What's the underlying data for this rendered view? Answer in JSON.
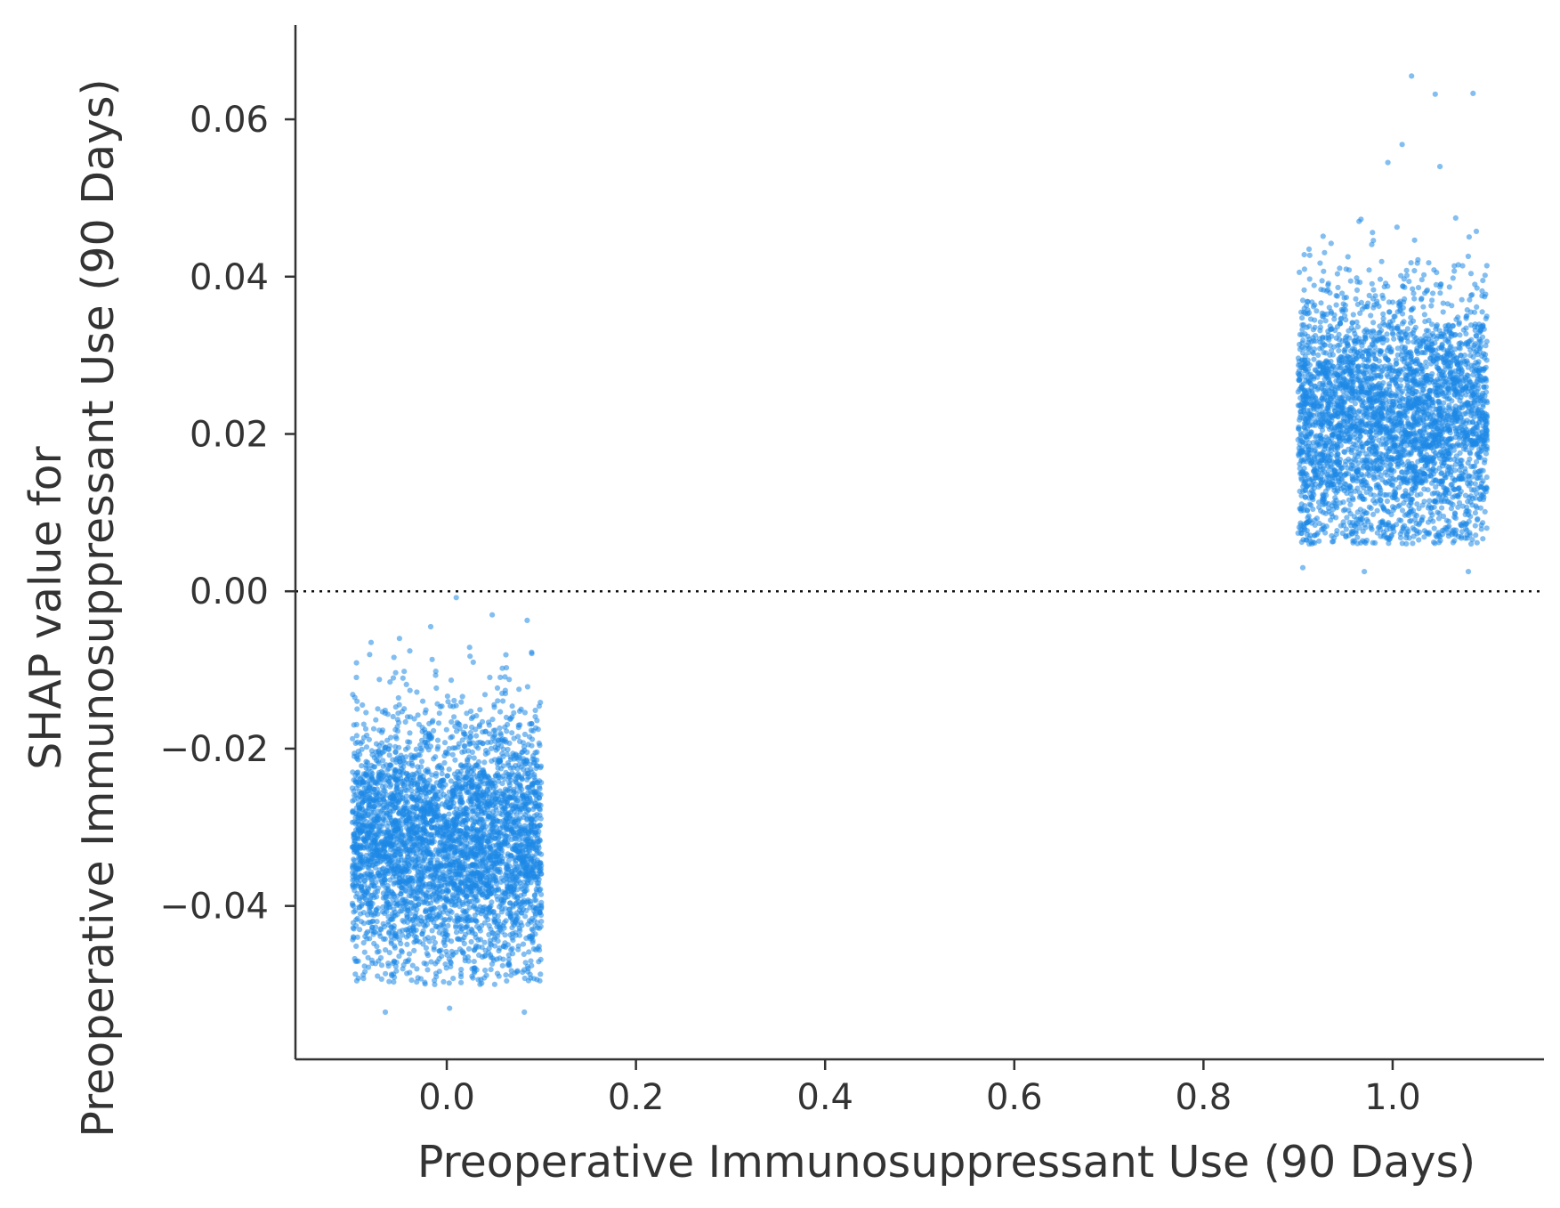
{
  "chart_data": {
    "type": "scatter",
    "xlabel": "Preoperative Immunosuppressant Use (90 Days)",
    "ylabel_lines": [
      "SHAP value for",
      "Preoperative Immunosuppressant Use (90 Days)"
    ],
    "xlim": [
      -0.16,
      1.16
    ],
    "ylim": [
      -0.0595,
      0.072
    ],
    "xticks": [
      0.0,
      0.2,
      0.4,
      0.6,
      0.8,
      1.0
    ],
    "xtick_labels": [
      "0.0",
      "0.2",
      "0.4",
      "0.6",
      "0.8",
      "1.0"
    ],
    "yticks": [
      -0.04,
      -0.02,
      0.0,
      0.02,
      0.04,
      0.06
    ],
    "ytick_labels": [
      "−0.04",
      "−0.02",
      "0.00",
      "0.02",
      "0.04",
      "0.06"
    ],
    "reference_line": {
      "y": 0.0,
      "style": "dotted"
    },
    "point_color": "#1e88e5",
    "point_alpha": 0.55,
    "grid": false,
    "clusters": [
      {
        "x_value": 0.0,
        "x_jitter_range": [
          -0.1,
          0.1
        ],
        "y_range": [
          -0.0535,
          -0.0008
        ],
        "y_core_range": [
          -0.043,
          -0.022
        ],
        "y_center": -0.032,
        "approx_points": 4000,
        "outliers": [
          {
            "x": 0.01,
            "y": -0.0008
          },
          {
            "x": 0.048,
            "y": -0.003
          },
          {
            "x": 0.085,
            "y": -0.0037
          },
          {
            "x": -0.017,
            "y": -0.0045
          },
          {
            "x": -0.05,
            "y": -0.006
          },
          {
            "x": -0.08,
            "y": -0.0065
          },
          {
            "x": -0.065,
            "y": -0.0535
          },
          {
            "x": 0.082,
            "y": -0.0535
          },
          {
            "x": 0.003,
            "y": -0.053
          }
        ]
      },
      {
        "x_value": 1.0,
        "x_jitter_range": [
          0.9,
          1.1
        ],
        "y_range": [
          0.0025,
          0.0655
        ],
        "y_core_range": [
          0.012,
          0.033
        ],
        "y_center": 0.022,
        "approx_points": 3600,
        "outliers": [
          {
            "x": 1.02,
            "y": 0.0655
          },
          {
            "x": 1.045,
            "y": 0.0632
          },
          {
            "x": 1.085,
            "y": 0.0633
          },
          {
            "x": 1.01,
            "y": 0.0568
          },
          {
            "x": 0.995,
            "y": 0.0545
          },
          {
            "x": 1.05,
            "y": 0.054
          },
          {
            "x": 1.08,
            "y": 0.0025
          },
          {
            "x": 0.97,
            "y": 0.0025
          },
          {
            "x": 0.905,
            "y": 0.003
          }
        ]
      }
    ]
  }
}
